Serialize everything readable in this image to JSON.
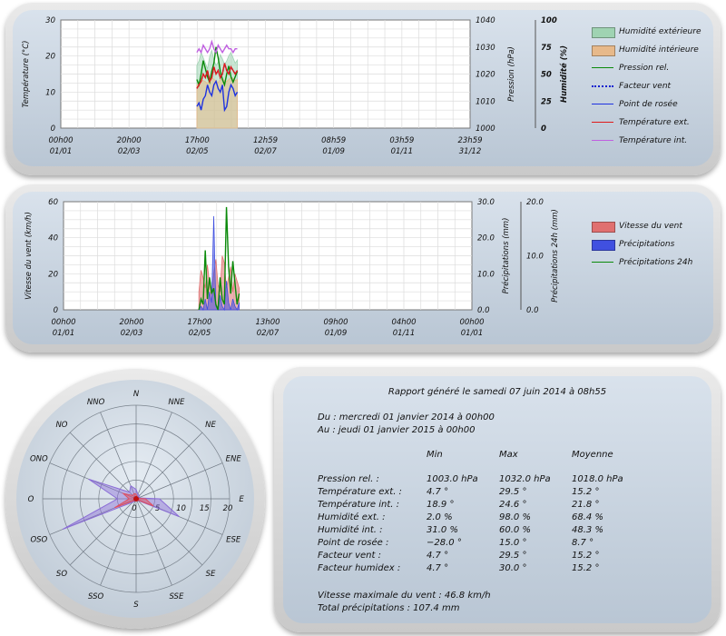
{
  "chart_data": [
    {
      "type": "line",
      "title": "",
      "x_tick_labels": [
        [
          "00h00",
          "01/01"
        ],
        [
          "20h00",
          "02/03"
        ],
        [
          "17h00",
          "02/05"
        ],
        [
          "12h59",
          "02/07"
        ],
        [
          "08h59",
          "01/09"
        ],
        [
          "03h59",
          "01/11"
        ],
        [
          "23h59",
          "31/12"
        ]
      ],
      "y_axes": [
        {
          "label": "Température (°C)",
          "range": [
            0,
            30
          ],
          "ticks": [
            "0",
            "10",
            "20",
            "30"
          ]
        },
        {
          "label": "Pression (hPa)",
          "range": [
            1000,
            1040
          ],
          "ticks": [
            "1000",
            "1010",
            "1020",
            "1030",
            "1040"
          ]
        },
        {
          "label": "Humidité (%)",
          "range": [
            0,
            100
          ],
          "ticks": [
            "0",
            "25",
            "50",
            "75",
            "100"
          ]
        }
      ],
      "grid": true,
      "legend_position": "right",
      "time_axis": {
        "start": "2014-01-01",
        "end": "2014-12-31",
        "data_start": "2014-05-02",
        "data_end": "2014-06-07"
      },
      "series": [
        {
          "name": "Humidité extérieure",
          "color": "#9fd3b2",
          "axis": "Humidité (%)",
          "style": "area",
          "values": [
            58,
            62,
            70,
            65,
            60,
            55,
            66,
            72,
            63,
            58,
            61,
            68,
            64,
            59,
            62,
            67,
            70,
            65,
            60,
            63
          ]
        },
        {
          "name": "Humidité intérieure",
          "color": "#e7b98a",
          "axis": "Humidité (%)",
          "style": "area",
          "values": [
            40,
            42,
            45,
            44,
            43,
            41,
            46,
            47,
            45,
            44,
            42,
            45,
            46,
            44,
            43,
            45,
            47,
            46,
            44,
            45
          ]
        },
        {
          "name": "Pression rel.",
          "color": "#0a8a0a",
          "axis": "Pression (hPa)",
          "style": "line",
          "values": [
            1018,
            1016,
            1020,
            1025,
            1022,
            1019,
            1017,
            1021,
            1024,
            1030,
            1026,
            1021,
            1018,
            1016,
            1020,
            1023,
            1019,
            1017,
            1019,
            1021
          ]
        },
        {
          "name": "Facteur vent",
          "color": "#1020d0",
          "axis": "Température (°C)",
          "style": "dotted",
          "values": [
            11,
            12,
            13,
            15,
            14,
            16,
            13,
            14,
            17,
            15,
            16,
            14,
            15,
            18,
            16,
            15,
            17,
            16,
            15,
            16
          ]
        },
        {
          "name": "Point de rosée",
          "color": "#1e32e0",
          "axis": "Température (°C)",
          "style": "line",
          "values": [
            6,
            7,
            5,
            8,
            9,
            12,
            10,
            9,
            12,
            13,
            11,
            10,
            12,
            5,
            6,
            10,
            12,
            11,
            9,
            10
          ]
        },
        {
          "name": "Température ext.",
          "color": "#e01a1a",
          "axis": "Température (°C)",
          "style": "line",
          "values": [
            11,
            12,
            13,
            15,
            14,
            16,
            13,
            14,
            17,
            15,
            16,
            14,
            15,
            18,
            16,
            15,
            17,
            16,
            15,
            16
          ]
        },
        {
          "name": "Température int.",
          "color": "#c060e0",
          "axis": "Température (°C)",
          "style": "line",
          "values": [
            21,
            22,
            21,
            23,
            22,
            21,
            22,
            24,
            22,
            21,
            23,
            22,
            21,
            22,
            23,
            22,
            22,
            21,
            22,
            22
          ]
        }
      ]
    },
    {
      "type": "line",
      "title": "",
      "x_tick_labels": [
        [
          "00h00",
          "01/01"
        ],
        [
          "20h00",
          "02/03"
        ],
        [
          "17h00",
          "02/05"
        ],
        [
          "13h00",
          "02/07"
        ],
        [
          "09h00",
          "01/09"
        ],
        [
          "04h00",
          "01/11"
        ],
        [
          "00h00",
          "01/01"
        ]
      ],
      "y_axes": [
        {
          "label": "Vitesse du vent (km/h)",
          "range": [
            0,
            60
          ],
          "ticks": [
            "0",
            "20",
            "40",
            "60"
          ]
        },
        {
          "label": "Précipitations (mm)",
          "range": [
            0,
            30
          ],
          "ticks": [
            "0.0",
            "10.0",
            "20.0",
            "30.0"
          ]
        },
        {
          "label": "Précipitations 24h (mm)",
          "range": [
            0,
            20
          ],
          "ticks": [
            "0.0",
            "10.0",
            "20.0"
          ]
        }
      ],
      "grid": true,
      "legend_position": "right",
      "time_axis": {
        "start": "2014-01-01",
        "end": "2015-01-01",
        "data_start": "2014-05-02",
        "data_end": "2014-06-07"
      },
      "series": [
        {
          "name": "Vitesse du vent",
          "color": "#e07070",
          "axis": "Vitesse du vent (km/h)",
          "style": "area",
          "values": [
            10,
            22,
            18,
            12,
            25,
            15,
            8,
            20,
            28,
            14,
            10,
            30,
            26,
            12,
            18,
            24,
            10,
            20,
            16,
            12
          ]
        },
        {
          "name": "Précipitations",
          "color": "#4050e0",
          "axis": "Précipitations (mm)",
          "style": "area",
          "values": [
            0,
            1,
            0,
            3,
            0,
            5,
            2,
            26,
            1,
            0,
            4,
            1,
            0,
            8,
            2,
            0,
            3,
            1,
            0,
            2
          ]
        },
        {
          "name": "Précipitations 24h",
          "color": "#0a8a0a",
          "axis": "Précipitations 24h (mm)",
          "style": "line",
          "values": [
            0,
            2,
            1,
            11,
            2,
            6,
            3,
            4,
            1,
            0,
            6,
            2,
            1,
            19,
            8,
            3,
            9,
            5,
            1,
            3
          ]
        }
      ]
    },
    {
      "type": "radar",
      "title": "",
      "categories": [
        "N",
        "NNE",
        "NE",
        "ENE",
        "E",
        "ESE",
        "SE",
        "SSE",
        "S",
        "SSO",
        "SO",
        "OSO",
        "O",
        "ONO",
        "NO",
        "NNO"
      ],
      "radial_ticks": [
        "0",
        "5",
        "10",
        "15",
        "20"
      ],
      "range": [
        0,
        20
      ],
      "grid": true,
      "series": [
        {
          "name": "",
          "color": "#8a6cd6",
          "values": [
            2,
            1,
            1,
            0.5,
            5,
            10,
            0.5,
            0.5,
            0.5,
            0.5,
            1,
            17,
            4,
            11,
            2,
            3
          ]
        },
        {
          "name": "",
          "color": "#e05060",
          "values": [
            1,
            0.5,
            0.5,
            0.3,
            2,
            4,
            0.3,
            0.3,
            0.3,
            0.3,
            0.5,
            5,
            1.5,
            3,
            1,
            1.2
          ]
        }
      ]
    }
  ],
  "chart1": {
    "ylabel_left": "Température (°C)",
    "ylabel_right1": "Pression (hPa)",
    "ylabel_right2": "Humidité (%)",
    "yticks_left": [
      "0",
      "10",
      "20",
      "30"
    ],
    "yticks_right1": [
      "1000",
      "1010",
      "1020",
      "1030",
      "1040"
    ],
    "yticks_right2": [
      "0",
      "25",
      "50",
      "75",
      "100"
    ],
    "xticks_top": [
      "00h00",
      "20h00",
      "17h00",
      "12h59",
      "08h59",
      "03h59",
      "23h59"
    ],
    "xticks_bottom": [
      "01/01",
      "02/03",
      "02/05",
      "02/07",
      "01/09",
      "01/11",
      "31/12"
    ],
    "legend": [
      {
        "label": "Humidité extérieure",
        "color": "#9fd3b2",
        "kind": "box"
      },
      {
        "label": "Humidité intérieure",
        "color": "#e7b98a",
        "kind": "box"
      },
      {
        "label": "Pression rel.",
        "color": "#0a8a0a",
        "kind": "line"
      },
      {
        "label": "Facteur vent",
        "color": "#1020d0",
        "kind": "dotted"
      },
      {
        "label": "Point de rosée",
        "color": "#1e32e0",
        "kind": "line"
      },
      {
        "label": "Température ext.",
        "color": "#e01a1a",
        "kind": "line"
      },
      {
        "label": "Température int.",
        "color": "#c060e0",
        "kind": "line"
      }
    ]
  },
  "chart2": {
    "ylabel_left": "Vitesse du vent (km/h)",
    "ylabel_right1": "Précipitations (mm)",
    "ylabel_right2": "Précipitations 24h (mm)",
    "yticks_left": [
      "0",
      "20",
      "40",
      "60"
    ],
    "yticks_right1": [
      "0.0",
      "10.0",
      "20.0",
      "30.0"
    ],
    "yticks_right2": [
      "0.0",
      "10.0",
      "20.0"
    ],
    "xticks_top": [
      "00h00",
      "20h00",
      "17h00",
      "13h00",
      "09h00",
      "04h00",
      "00h00"
    ],
    "xticks_bottom": [
      "01/01",
      "02/03",
      "02/05",
      "02/07",
      "01/09",
      "01/11",
      "01/01"
    ],
    "legend": [
      {
        "label": "Vitesse du vent",
        "color": "#e07070",
        "kind": "box"
      },
      {
        "label": "Précipitations",
        "color": "#4050e0",
        "kind": "box"
      },
      {
        "label": "Précipitations 24h",
        "color": "#0a8a0a",
        "kind": "line"
      }
    ]
  },
  "report": {
    "title": "Rapport généré le samedi 07 juin 2014 à 08h55",
    "from": "Du : mercredi 01 janvier 2014 à 00h00",
    "to": "Au : jeudi 01 janvier 2015 à 00h00",
    "headers": [
      "Min",
      "Max",
      "Moyenne"
    ],
    "rows": [
      {
        "label": "Pression rel. :",
        "min": "1003.0 hPa",
        "max": "1032.0 hPa",
        "avg": "1018.0 hPa"
      },
      {
        "label": "Température ext. :",
        "min": "4.7 °",
        "max": "29.5 °",
        "avg": "15.2 °"
      },
      {
        "label": "Température int. :",
        "min": "18.9 °",
        "max": "24.6 °",
        "avg": "21.8 °"
      },
      {
        "label": "Humidité ext. :",
        "min": "2.0 %",
        "max": "98.0 %",
        "avg": "68.4 %"
      },
      {
        "label": "Humidité int. :",
        "min": "31.0 %",
        "max": "60.0 %",
        "avg": "48.3 %"
      },
      {
        "label": "Point de rosée :",
        "min": "−28.0 °",
        "max": "15.0 °",
        "avg": "8.7 °"
      },
      {
        "label": "Facteur vent :",
        "min": "4.7 °",
        "max": "29.5 °",
        "avg": "15.2 °"
      },
      {
        "label": "Facteur humidex :",
        "min": "4.7 °",
        "max": "30.0 °",
        "avg": "15.2 °"
      }
    ],
    "max_wind": "Vitesse maximale du vent : 46.8 km/h",
    "total_rain": "Total précipitations : 107.4 mm"
  }
}
